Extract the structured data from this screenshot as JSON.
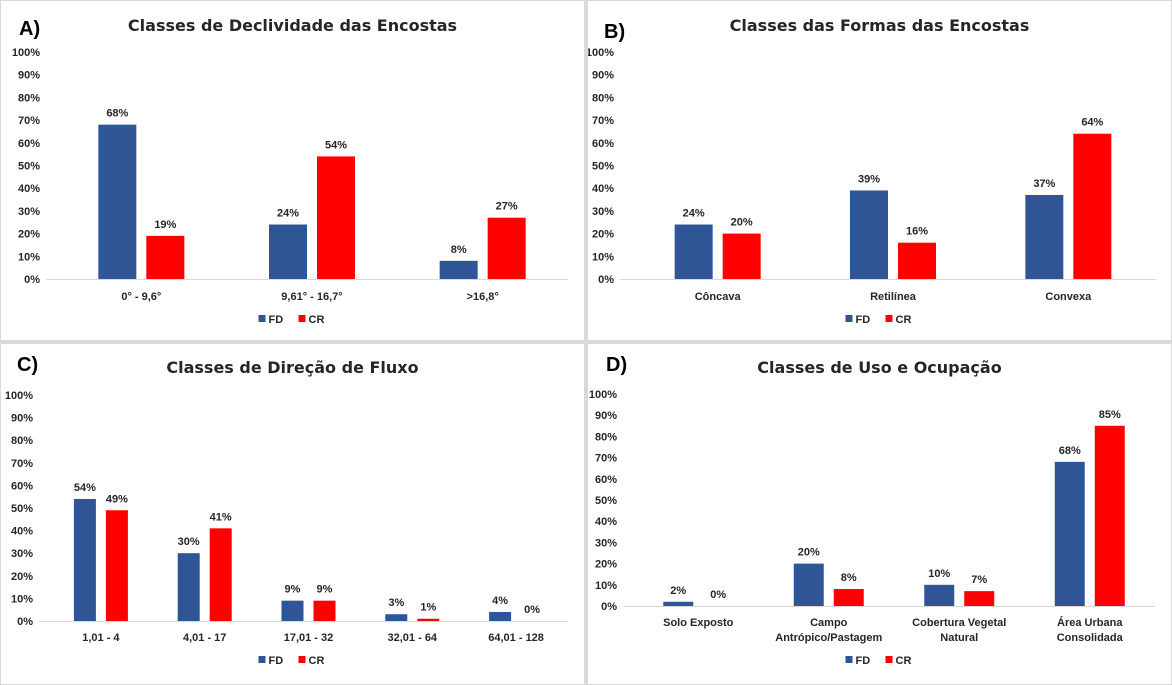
{
  "colors": {
    "FD": "#2f5597",
    "CR": "#ff0000",
    "grid": "#d9d9d9",
    "text": "#262626"
  },
  "chart_data": [
    {
      "type": "bar",
      "panel_label": "A)",
      "title": "Classes de Declividade das Encostas",
      "categories": [
        "0° - 9,6°",
        "9,61° - 16,7°",
        ">16,8°"
      ],
      "series": [
        {
          "name": "FD",
          "values": [
            68,
            24,
            8
          ]
        },
        {
          "name": "CR",
          "values": [
            19,
            54,
            27
          ]
        }
      ],
      "y_ticks": [
        "0%",
        "10%",
        "20%",
        "30%",
        "40%",
        "50%",
        "60%",
        "70%",
        "80%",
        "90%",
        "100%"
      ],
      "ylim": [
        0,
        100
      ],
      "grid": false,
      "legend": "bottom"
    },
    {
      "type": "bar",
      "panel_label": "B)",
      "title": "Classes das Formas das Encostas",
      "categories": [
        "Côncava",
        "Retilínea",
        "Convexa"
      ],
      "series": [
        {
          "name": "FD",
          "values": [
            24,
            39,
            37
          ]
        },
        {
          "name": "CR",
          "values": [
            20,
            16,
            64
          ]
        }
      ],
      "y_ticks": [
        "0%",
        "10%",
        "20%",
        "30%",
        "40%",
        "50%",
        "60%",
        "70%",
        "80%",
        "90%",
        "100%"
      ],
      "ylim": [
        0,
        100
      ],
      "grid": false,
      "legend": "bottom"
    },
    {
      "type": "bar",
      "panel_label": "C)",
      "title": "Classes de Direção de Fluxo",
      "categories": [
        "1,01 - 4",
        "4,01 - 17",
        "17,01 - 32",
        "32,01 - 64",
        "64,01 - 128"
      ],
      "series": [
        {
          "name": "FD",
          "values": [
            54,
            30,
            9,
            3,
            4
          ]
        },
        {
          "name": "CR",
          "values": [
            49,
            41,
            9,
            1,
            0
          ]
        }
      ],
      "y_ticks": [
        "0%",
        "10%",
        "20%",
        "30%",
        "40%",
        "50%",
        "60%",
        "70%",
        "80%",
        "90%",
        "100%"
      ],
      "ylim": [
        0,
        100
      ],
      "grid": false,
      "legend": "bottom"
    },
    {
      "type": "bar",
      "panel_label": "D)",
      "title": "Classes de Uso e Ocupação",
      "categories": [
        [
          "Solo Exposto"
        ],
        [
          "Campo",
          "Antrópico/Pastagem"
        ],
        [
          "Cobertura Vegetal",
          "Natural"
        ],
        [
          "Área Urbana",
          "Consolidada"
        ]
      ],
      "series": [
        {
          "name": "FD",
          "values": [
            2,
            20,
            10,
            68
          ]
        },
        {
          "name": "CR",
          "values": [
            0,
            8,
            7,
            85
          ]
        }
      ],
      "y_ticks": [
        "0%",
        "10%",
        "20%",
        "30%",
        "40%",
        "50%",
        "60%",
        "70%",
        "80%",
        "90%",
        "100%"
      ],
      "ylim": [
        0,
        100
      ],
      "grid": false,
      "legend": "bottom"
    }
  ]
}
